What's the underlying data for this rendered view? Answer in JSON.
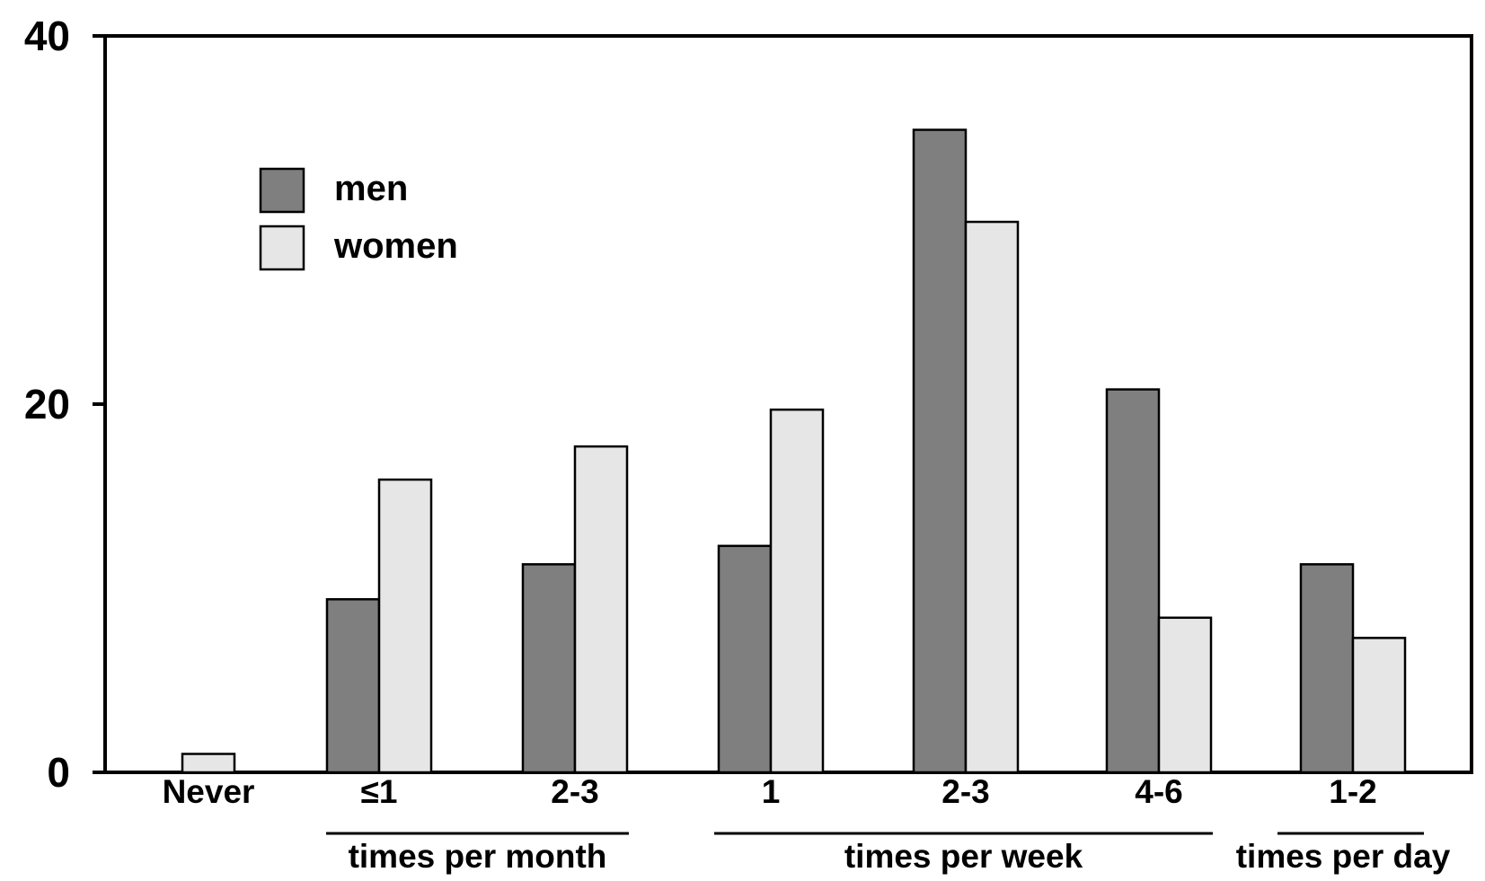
{
  "chart_data": {
    "type": "bar",
    "title": "",
    "xlabel": "",
    "ylabel": "",
    "ylim": [
      0,
      40
    ],
    "yticks": [
      0,
      20,
      40
    ],
    "grid": false,
    "legend_position": "top-left",
    "categories": [
      "Never",
      "≤1",
      "2-3",
      "1",
      "2-3",
      "4-6",
      "1-2"
    ],
    "category_groups": [
      {
        "label": "times per month",
        "from": 1,
        "to": 2
      },
      {
        "label": "times per week",
        "from": 3,
        "to": 5
      },
      {
        "label": "times per day",
        "from": 6,
        "to": 6
      }
    ],
    "series": [
      {
        "name": "men",
        "color": "#7f7f7f",
        "values": [
          0,
          9.4,
          11.3,
          12.3,
          34.9,
          20.8,
          11.3
        ]
      },
      {
        "name": "women",
        "color": "#e6e6e6",
        "values": [
          1.0,
          15.9,
          17.7,
          19.7,
          29.9,
          8.4,
          7.3
        ]
      }
    ]
  }
}
